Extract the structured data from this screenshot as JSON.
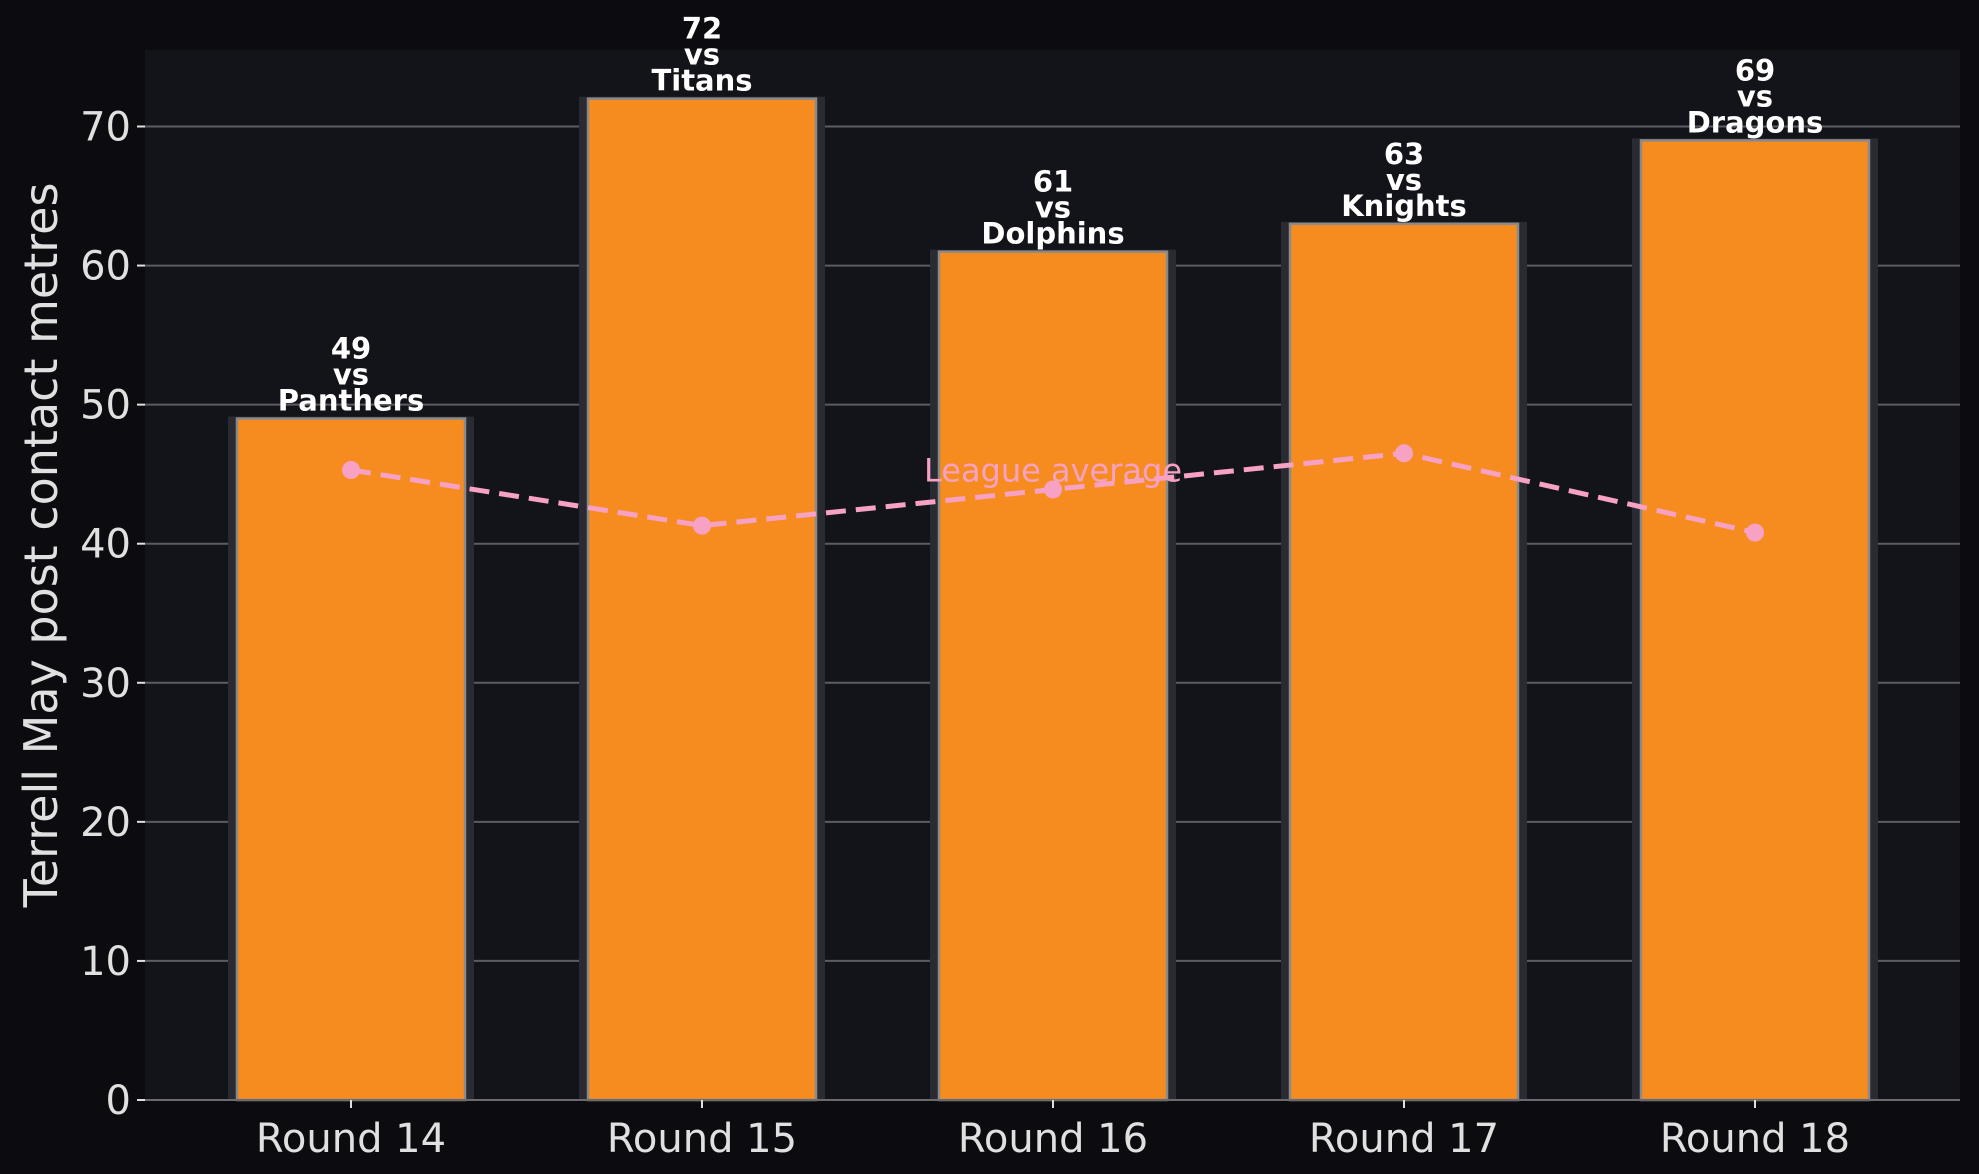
{
  "chart_data": {
    "type": "bar",
    "categories": [
      "Round 14",
      "Round 15",
      "Round 16",
      "Round 17",
      "Round 18"
    ],
    "values": [
      49,
      72,
      61,
      63,
      69
    ],
    "bar_labels": [
      "49\nvs\nPanthers",
      "72\nvs\nTitans",
      "61\nvs\nDolphins",
      "63\nvs\nKnights",
      "69\nvs\nDragons"
    ],
    "league_average": {
      "label": "League average",
      "values": [
        45.3,
        41.3,
        43.9,
        46.5,
        40.8
      ]
    },
    "ylabel": "Terrell May post contact metres",
    "xlabel": "",
    "ylim": [
      0,
      75.5
    ],
    "yticks": [
      0,
      10,
      20,
      30,
      40,
      50,
      60,
      70
    ],
    "grid": "horizontal",
    "colors": {
      "figure_bg": "#0c0c10",
      "axes_bg": "#13131a",
      "bar": "#f68c20",
      "bar_edge": "#8a8a8a",
      "bar_shadow": "#2a2a32",
      "grid": "#5c5c62",
      "average_line": "#f7a1c4",
      "text": "#e0e0e0",
      "bar_label": "#ffffff"
    }
  }
}
